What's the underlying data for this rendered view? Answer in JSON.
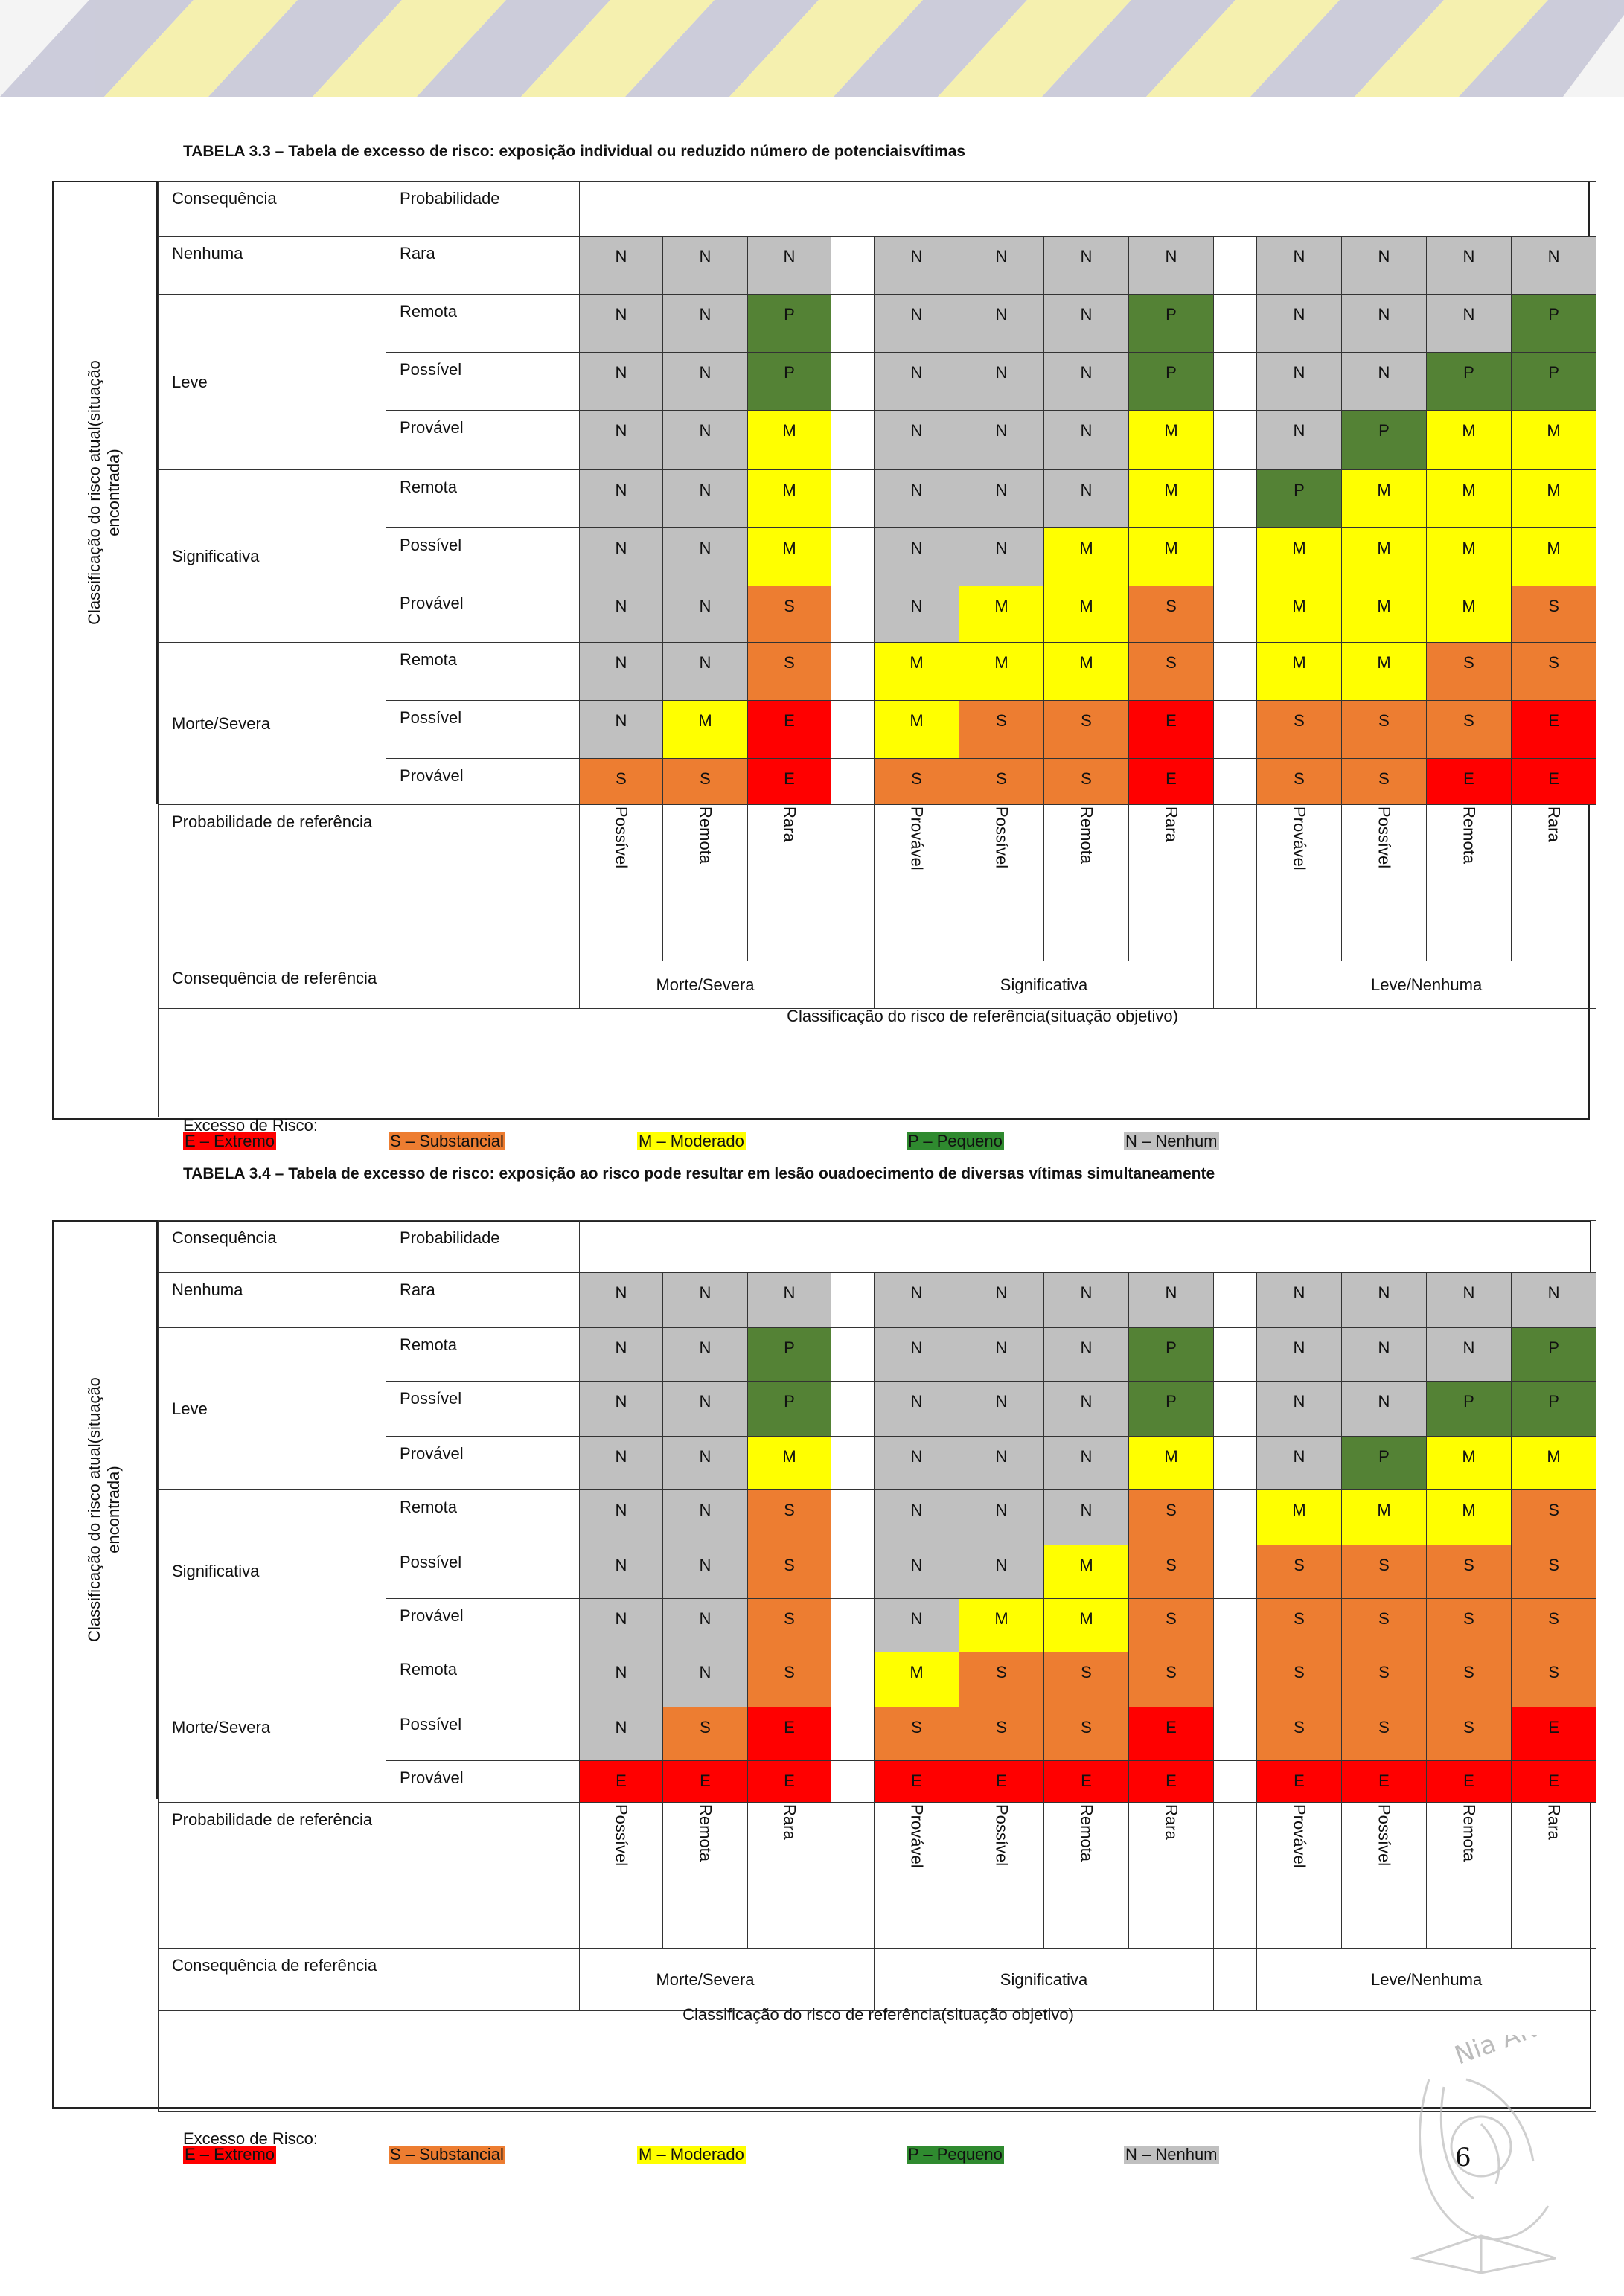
{
  "page_number": "6",
  "logo_text": "Nia ANOTE",
  "colors": {
    "N": "#c0c0c0",
    "P": "#548235",
    "M": "#ffff00",
    "S": "#ed7d31",
    "E": "#ff0000"
  },
  "legend": {
    "title": "Excesso de Risco:",
    "items": [
      {
        "code": "E",
        "label": "E – Extremo"
      },
      {
        "code": "S",
        "label": "S – Substancial"
      },
      {
        "code": "M",
        "label": "M – Moderado"
      },
      {
        "code": "P",
        "label": "P – Pequeno"
      },
      {
        "code": "N",
        "label": "N – Nenhum"
      }
    ]
  },
  "tables": [
    {
      "caption": "TABELA 3.3 – Tabela de excesso de risco: exposição individual ou reduzido número de potenciaisvítimas",
      "side_label_1": "Classificação do risco atual(situação",
      "side_label_2": "encontrada)",
      "header_consequence": "Consequência",
      "header_probability": "Probabilidade",
      "ref_prob_label": "Probabilidade de referência",
      "ref_cons_label": "Consequência de referência",
      "objective_label": "Classificação do risco de referência(situação objetivo)",
      "ref_probs": [
        "Possível",
        "Remota",
        "Rara",
        "Provável",
        "Possível",
        "Remota",
        "Rara",
        "Provável",
        "Possível",
        "Remota",
        "Rara"
      ],
      "ref_cons": [
        "Morte/Severa",
        "Significativa",
        "Leve/Nenhuma"
      ],
      "groups": [
        {
          "consequence": "Nenhuma",
          "rows": [
            {
              "prob": "Rara",
              "cells": [
                "N",
                "N",
                "N",
                "N",
                "N",
                "N",
                "N",
                "N",
                "N",
                "N",
                "N"
              ]
            }
          ]
        },
        {
          "consequence": "Leve",
          "rows": [
            {
              "prob": "Remota",
              "cells": [
                "N",
                "N",
                "P",
                "N",
                "N",
                "N",
                "P",
                "N",
                "N",
                "N",
                "P"
              ]
            },
            {
              "prob": "Possível",
              "cells": [
                "N",
                "N",
                "P",
                "N",
                "N",
                "N",
                "P",
                "N",
                "N",
                "P",
                "P"
              ]
            },
            {
              "prob": "Provável",
              "cells": [
                "N",
                "N",
                "M",
                "N",
                "N",
                "N",
                "M",
                "N",
                "P",
                "M",
                "M"
              ]
            }
          ]
        },
        {
          "consequence": "Significativa",
          "rows": [
            {
              "prob": "Remota",
              "cells": [
                "N",
                "N",
                "M",
                "N",
                "N",
                "N",
                "M",
                "P",
                "M",
                "M",
                "M"
              ]
            },
            {
              "prob": "Possível",
              "cells": [
                "N",
                "N",
                "M",
                "N",
                "N",
                "M",
                "M",
                "M",
                "M",
                "M",
                "M"
              ]
            },
            {
              "prob": "Provável",
              "cells": [
                "N",
                "N",
                "S",
                "N",
                "M",
                "M",
                "S",
                "M",
                "M",
                "M",
                "S"
              ]
            }
          ]
        },
        {
          "consequence": "Morte/Severa",
          "rows": [
            {
              "prob": "Remota",
              "cells": [
                "N",
                "N",
                "S",
                "M",
                "M",
                "M",
                "S",
                "M",
                "M",
                "S",
                "S"
              ]
            },
            {
              "prob": "Possível",
              "cells": [
                "N",
                "M",
                "E",
                "M",
                "S",
                "S",
                "E",
                "S",
                "S",
                "S",
                "E"
              ]
            },
            {
              "prob": "Provável",
              "cells": [
                "S",
                "S",
                "E",
                "S",
                "S",
                "S",
                "E",
                "S",
                "S",
                "E",
                "E"
              ]
            }
          ]
        }
      ]
    },
    {
      "caption": "TABELA 3.4 – Tabela de excesso de risco: exposição ao risco pode resultar em lesão ouadoecimento de diversas vítimas simultaneamente",
      "side_label_1": "Classificação do risco atual(situação",
      "side_label_2": "encontrada)",
      "header_consequence": "Consequência",
      "header_probability": "Probabilidade",
      "ref_prob_label": "Probabilidade de referência",
      "ref_cons_label": "Consequência de referência",
      "objective_label": "Classificação do risco de referência(situação objetivo)",
      "ref_probs": [
        "Possível",
        "Remota",
        "Rara",
        "Provável",
        "Possível",
        "Remota",
        "Rara",
        "Provável",
        "Possível",
        "Remota",
        "Rara"
      ],
      "ref_cons": [
        "Morte/Severa",
        "Significativa",
        "Leve/Nenhuma"
      ],
      "groups": [
        {
          "consequence": "Nenhuma",
          "rows": [
            {
              "prob": "Rara",
              "cells": [
                "N",
                "N",
                "N",
                "N",
                "N",
                "N",
                "N",
                "N",
                "N",
                "N",
                "N"
              ]
            }
          ]
        },
        {
          "consequence": "Leve",
          "rows": [
            {
              "prob": "Remota",
              "cells": [
                "N",
                "N",
                "P",
                "N",
                "N",
                "N",
                "P",
                "N",
                "N",
                "N",
                "P"
              ]
            },
            {
              "prob": "Possível",
              "cells": [
                "N",
                "N",
                "P",
                "N",
                "N",
                "N",
                "P",
                "N",
                "N",
                "P",
                "P"
              ]
            },
            {
              "prob": "Provável",
              "cells": [
                "N",
                "N",
                "M",
                "N",
                "N",
                "N",
                "M",
                "N",
                "P",
                "M",
                "M"
              ]
            }
          ]
        },
        {
          "consequence": "Significativa",
          "rows": [
            {
              "prob": "Remota",
              "cells": [
                "N",
                "N",
                "S",
                "N",
                "N",
                "N",
                "S",
                "M",
                "M",
                "M",
                "S"
              ]
            },
            {
              "prob": "Possível",
              "cells": [
                "N",
                "N",
                "S",
                "N",
                "N",
                "M",
                "S",
                "S",
                "S",
                "S",
                "S"
              ]
            },
            {
              "prob": "Provável",
              "cells": [
                "N",
                "N",
                "S",
                "N",
                "M",
                "M",
                "S",
                "S",
                "S",
                "S",
                "S"
              ]
            }
          ]
        },
        {
          "consequence": "Morte/Severa",
          "rows": [
            {
              "prob": "Remota",
              "cells": [
                "N",
                "N",
                "S",
                "M",
                "S",
                "S",
                "S",
                "S",
                "S",
                "S",
                "S"
              ]
            },
            {
              "prob": "Possível",
              "cells": [
                "N",
                "S",
                "E",
                "S",
                "S",
                "S",
                "E",
                "S",
                "S",
                "S",
                "E"
              ]
            },
            {
              "prob": "Provável",
              "cells": [
                "E",
                "E",
                "E",
                "E",
                "E",
                "E",
                "E",
                "E",
                "E",
                "E",
                "E"
              ]
            }
          ]
        }
      ]
    }
  ]
}
